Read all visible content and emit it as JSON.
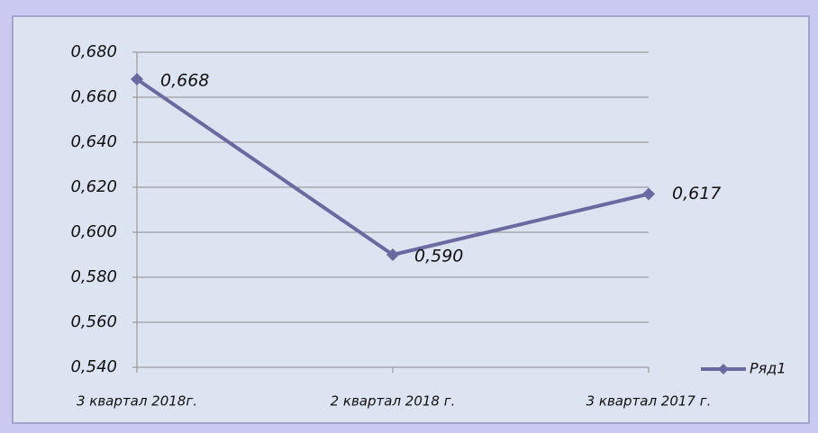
{
  "chart_data": {
    "type": "line",
    "categories": [
      "3  квартал 2018г.",
      "2 квартал 2018 г.",
      "3 квартал 2017 г."
    ],
    "series": [
      {
        "name": "Ряд1",
        "color": "#6a6aa0",
        "values": [
          0.668,
          0.59,
          0.617
        ],
        "value_labels": [
          "0,668",
          "0,590",
          "0,617"
        ]
      }
    ],
    "ylim": [
      0.54,
      0.68
    ],
    "yticks": [
      {
        "value": 0.54,
        "label": "0,540"
      },
      {
        "value": 0.56,
        "label": "0,560"
      },
      {
        "value": 0.58,
        "label": "0,580"
      },
      {
        "value": 0.6,
        "label": "0,600"
      },
      {
        "value": 0.62,
        "label": "0,620"
      },
      {
        "value": 0.64,
        "label": "0,640"
      },
      {
        "value": 0.66,
        "label": "0,660"
      },
      {
        "value": 0.68,
        "label": "0,680"
      }
    ],
    "grid": true,
    "legend": "right"
  }
}
